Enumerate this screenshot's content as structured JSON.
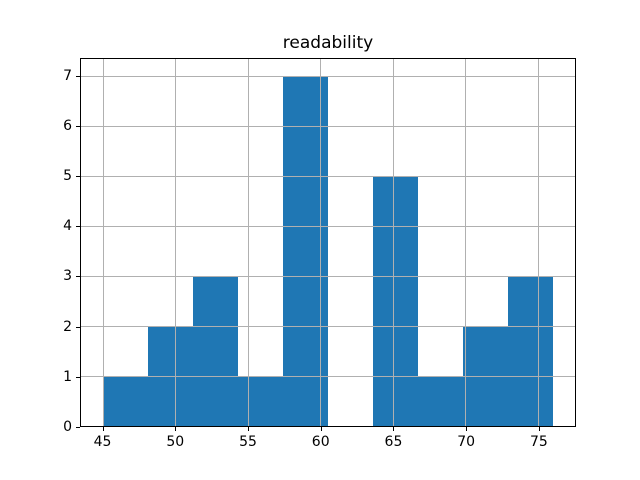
{
  "window": {
    "background_color": "#ffffff",
    "spine_color": "#000000",
    "tick_label_color": "#000000"
  },
  "chart_data": {
    "type": "bar",
    "chart_kind": "histogram",
    "title": "readability",
    "xlabel": "",
    "ylabel": "",
    "bin_edges": [
      45.0,
      48.1,
      51.2,
      54.3,
      57.4,
      60.5,
      63.6,
      66.7,
      69.8,
      72.9,
      76.0
    ],
    "counts": [
      1,
      2,
      3,
      1,
      7,
      0,
      5,
      1,
      2,
      3
    ],
    "xticks": [
      45,
      50,
      55,
      60,
      65,
      70,
      75
    ],
    "yticks": [
      0,
      1,
      2,
      3,
      4,
      5,
      6,
      7
    ],
    "xlim": [
      43.45,
      77.55
    ],
    "ylim": [
      0,
      7.35
    ],
    "bar_color": "#1f77b4",
    "grid": true,
    "grid_above_bars": true,
    "grid_color": "#b0b0b0",
    "legend": "none"
  }
}
